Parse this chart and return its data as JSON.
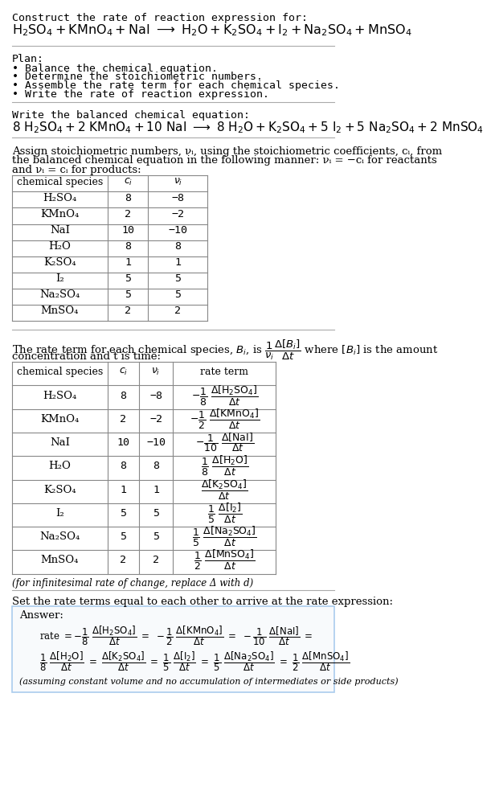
{
  "bg_color": "#ffffff",
  "font_family": "DejaVu Sans Mono",
  "sections": {
    "s1_title": "Construct the rate of reaction expression for:",
    "s1_reaction_parts": [
      [
        "H",
        "2",
        "SO",
        "4",
        " + KMnO",
        "4",
        " + NaI  →  H",
        "2",
        "O + K",
        "2",
        "SO",
        "4",
        " + I",
        "2",
        " + Na",
        "2",
        "SO",
        "4",
        " + MnSO",
        "4"
      ]
    ],
    "plan_header": "Plan:",
    "plan_items": [
      "• Balance the chemical equation.",
      "• Determine the stoichiometric numbers.",
      "• Assemble the rate term for each chemical species.",
      "• Write the rate of reaction expression."
    ],
    "balanced_header": "Write the balanced chemical equation:",
    "stoich_para": [
      "Assign stoichiometric numbers, νᵢ, using the stoichiometric coefficients, cᵢ, from",
      "the balanced chemical equation in the following manner: νᵢ = −cᵢ for reactants",
      "and νᵢ = cᵢ for products:"
    ],
    "table1_data": [
      [
        "H₂SO₄",
        "8",
        "−8"
      ],
      [
        "KMnO₄",
        "2",
        "−2"
      ],
      [
        "NaI",
        "10",
        "−10"
      ],
      [
        "H₂O",
        "8",
        "8"
      ],
      [
        "K₂SO₄",
        "1",
        "1"
      ],
      [
        "I₂",
        "5",
        "5"
      ],
      [
        "Na₂SO₄",
        "5",
        "5"
      ],
      [
        "MnSO₄",
        "2",
        "2"
      ]
    ],
    "rate_para": [
      "The rate term for each chemical species, Bᵢ, is",
      "concentration and t is time:"
    ],
    "table2_data": [
      [
        "H₂SO₄",
        "8",
        "−8"
      ],
      [
        "KMnO₄",
        "2",
        "−2"
      ],
      [
        "NaI",
        "10",
        "−10"
      ],
      [
        "H₂O",
        "8",
        "8"
      ],
      [
        "K₂SO₄",
        "1",
        "1"
      ],
      [
        "I₂",
        "5",
        "5"
      ],
      [
        "Na₂SO₄",
        "5",
        "5"
      ],
      [
        "MnSO₄",
        "2",
        "2"
      ]
    ],
    "rate_terms_num": [
      "−1/8",
      "−1/2",
      "−1/10",
      "1/8",
      "",
      "1/5",
      "1/5",
      "1/2"
    ],
    "rate_terms_bracket": [
      "Δ[H₂SO₄]",
      "Δ[KMnO₄]",
      "Δ[NaI]",
      "Δ[H₂O]",
      "Δ[K₂SO₄]",
      "Δ[I₂]",
      "Δ[Na₂SO₄]",
      "Δ[MnSO₄]"
    ],
    "infinitesimal_note": "(for infinitesimal rate of change, replace Δ with d)",
    "set_equal_header": "Set the rate terms equal to each other to arrive at the rate expression:",
    "answer_label": "Answer:",
    "final_note": "(assuming constant volume and no accumulation of intermediates or side products)"
  },
  "colors": {
    "line": "#aaaaaa",
    "table_border": "#888888",
    "answer_border": "#aaccee",
    "answer_bg": "#f8fafc"
  }
}
